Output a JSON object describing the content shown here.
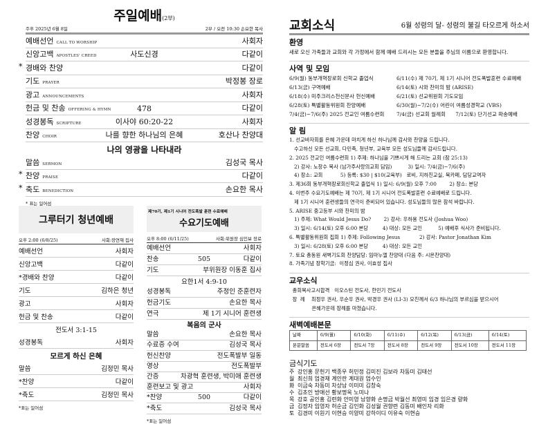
{
  "sunday": {
    "title": "주일예배",
    "part": "(2부)",
    "date": "주후 2025년 6월 8일",
    "time": "2부 / 오전 10:30  손요한 목사",
    "rows": [
      {
        "star": "",
        "ko": "예배선언",
        "en": "Call to Worship",
        "mid": "",
        "right": "사회자"
      },
      {
        "star": "",
        "ko": "신앙고백",
        "en": "Apostles' Creed",
        "mid": "사도신경",
        "right": "다같이"
      },
      {
        "star": "*",
        "ko": "경배와 찬양",
        "en": "",
        "mid": "",
        "right": "다같이"
      },
      {
        "star": "",
        "ko": "기도",
        "en": "Prayer",
        "mid": "",
        "right": "박정봉 장로"
      },
      {
        "star": "",
        "ko": "광고",
        "en": "Announcements",
        "mid": "",
        "right": "사회자"
      },
      {
        "star": "",
        "ko": "헌금 및 찬송",
        "en": "Offering & Hymn",
        "mid": "478",
        "right": "다같이"
      },
      {
        "star": "",
        "ko": "성경봉독",
        "en": "Scripture",
        "mid": "이사야 60:20-22",
        "right": "사회자"
      },
      {
        "star": "",
        "ko": "찬양",
        "en": "Choir",
        "mid": "나를 향한 하나님의 은혜",
        "right": "호산나 찬양대"
      }
    ],
    "sermon_title": "나의 영광을 나타내라",
    "rows2": [
      {
        "star": "",
        "ko": "말씀",
        "en": "Sermon",
        "mid": "",
        "right": "김성국 목사"
      },
      {
        "star": "*",
        "ko": "찬양",
        "en": "Praise",
        "mid": "",
        "right": "다같이"
      },
      {
        "star": "*",
        "ko": "축도",
        "en": "Benediction",
        "mid": "",
        "right": "손요한 목사"
      }
    ],
    "note": "* 표는 일어섬"
  },
  "youth": {
    "title": "그루터기 청년예배",
    "time": "오후 2:00 (6/8/25)",
    "host": "사회:장연재 집사",
    "rows": [
      {
        "l": "예배선언",
        "m": "",
        "r": "사회자"
      },
      {
        "l": "신앙고백",
        "m": "",
        "r": "다같이"
      },
      {
        "l": "*경배와 찬양",
        "m": "",
        "r": "다같이"
      },
      {
        "l": "기도",
        "m": "",
        "r": "김하은 청년"
      },
      {
        "l": "광고",
        "m": "",
        "r": "사회자"
      },
      {
        "l": "헌금 및 찬송",
        "m": "",
        "r": "다같이"
      }
    ],
    "scripture": "전도서 3:1-15",
    "rows2": [
      {
        "l": "성경봉독",
        "m": "",
        "r": "사회자"
      }
    ],
    "sermon_title": "모르게 하신 은혜",
    "rows3": [
      {
        "l": "말씀",
        "m": "",
        "r": "김정민 목사"
      },
      {
        "l": "*찬양",
        "m": "",
        "r": "다같이"
      },
      {
        "l": "*축도",
        "m": "",
        "r": "김정민 목사"
      }
    ],
    "note": "*표는 일어섬"
  },
  "wednesday": {
    "subtitle": "제70기, 제1기 시니어 전도폭발 훈련 수료예배",
    "title": "수요기도예배",
    "time": "오후 8:00 (6/11/25)",
    "host": "사회:위원장 심인보 장로",
    "rows": [
      {
        "l": "예배선언",
        "m": "",
        "r": "사회자"
      },
      {
        "l": "찬송",
        "m": "505",
        "r": "다같이"
      },
      {
        "l": "기도",
        "m": "",
        "r": "부위원장 이동훈 집사"
      }
    ],
    "scripture": "요한1서 4:9-10",
    "rows2": [
      {
        "l": "성경봉독",
        "m": "",
        "r": "주정인 준훈련자"
      },
      {
        "l": "헌금기도",
        "m": "",
        "r": "손요한 목사"
      },
      {
        "l": "연극",
        "m": "",
        "r": "제 1기 시니어 훈련생"
      }
    ],
    "sermon_title": "복음의 군사",
    "rows3": [
      {
        "l": "말씀",
        "m": "",
        "r": "손요한 목사"
      },
      {
        "l": "수료증 수여",
        "m": "",
        "r": "김성국 목사"
      },
      {
        "l": "헌신찬양",
        "m": "",
        "r": "전도폭발부 일동"
      },
      {
        "l": "영상",
        "m": "",
        "r": "전도폭발부"
      },
      {
        "l": "간증",
        "m": "",
        "r": "차광혁 훈련생, 박미애 훈련생"
      },
      {
        "l": "훈련보고 및 광고",
        "m": "",
        "r": "사회자"
      },
      {
        "l": "*찬양",
        "m": "500",
        "r": "다같이"
      },
      {
        "l": "*축도",
        "m": "",
        "r": "김성국 목사"
      }
    ],
    "note": "*표는 일어섬"
  },
  "news": {
    "title": "교회소식",
    "theme": "6월  성령의 달- 성령의 불길 타오르게 하소서",
    "welcome": {
      "title": "환영",
      "text": "새로 오신 가족들과 교회와 각 가정에서 함께 예배 드리시는 모든 분들을 주님의 이름으로 환영합니다."
    },
    "events": {
      "title": "사역 및 모임",
      "rows": [
        [
          "6/9(월) 동부개혁장로회 신학교 졸업식",
          "6/11(수) 제 70기, 제 1기 시니어 전도폭발훈련 수료예배"
        ],
        [
          "6/13(금) 구역예배",
          "6/14(토) 시와 찬미의 밤 (ARISE)"
        ],
        [
          "6/18(수) 미주크리스천신문사 헌신예배",
          "6/21(토) 선교위원회 기도모임"
        ],
        [
          "6/28(토) 특별활동위원회 찬양예배",
          "6/30(월)~7/2(수) 어린이 여름성경학교 (VBS)"
        ],
        [
          "7/4(금)~7/6(주) 2025 전교인 여름수련회",
          "7/4(금) 선교회 월례회      7/12(토) 단기선교 파송예배"
        ]
      ]
    },
    "notices": {
      "title": "알 림",
      "lines": [
        "1. 선교바자회를 은혜 가운데 마치게 하신 하나님께 감사와 찬양을 드립니다.",
        "   수고하신 모든 선교회, 다민족, 청년부, 교육부 모든 성도님들께 감사드립니다.",
        "2. 2025 전교인 여름수련회 1) 주제: 하나님을 기쁘시게 해 드리는 교회 (잠 25:13)",
        "   2) 강사: 노창수 목사 (남가주사랑의교회 담임)          3) 일시: 7/4(금)~7/6(주)",
        "   4) 장소: 교회           5) 등록: $30 | $10(교육부)   로비, 지하친교실, 북카페, 담당교역자",
        "3. 제36회 동부개혁장로회신학교 졸업식 1) 일시: 6/9(월) 오후 7:00        2) 장소: 본당",
        "4. 이번주 수요기도예배는 제 70기, 제 1기 시니어 전도폭발훈련 수료예배로 드립니다.",
        "   제 1기 시니어 훈련생들의 연극이 준비되어 있습니다. 성도님들의 많은 참석 바랍니다.",
        "5. ARISE 중고등부 시와 찬미의 밤",
        "   1) 주제: What Would Jesus Do?        2) 강사: 우하용 전도사 (Joshua Woo)",
        "   3) 일시: 6/14(토) 오후 6:00 본당         4) 대상: 모든 교인          5) 예배후 식사가 준비됩니다.",
        "6. 특별활동위원회 집회 1) 주제: Following Jesus            2) 강사: Pastor Jonathan Kim",
        "   3) 일시: 6/28(토) 오후 6:00 본당         4) 대상: 모든 교인",
        "7. 토요 총동원 새벽기도회 찬양담당: 임마누엘 찬양대 (다음 주: 시온찬양대)",
        "8. 가족기념 장학기금:  이정심 권사, 이효성 집사"
      ]
    },
    "members": {
      "title": "교우소식",
      "lines": [
        "  총회목사고시합격   이오스틴 전도사, 한민기 전도사",
        "  장  례    최정우 권사, 우순우 권사, 박경우 권사 (LI-3) 모친께서 6/3 하나님의 부르심을 받으시어",
        "              은혜가운데 장례를 마쳤습니다."
      ]
    },
    "dawn": {
      "title": "새벽예배본문",
      "header": [
        "날짜",
        "6/9(월)",
        "6/10(화)",
        "6/11(수)",
        "6/12(목)",
        "6/13(금)",
        "6/14(토)"
      ],
      "body": [
        "본문말씀",
        "전도서 6장",
        "전도서 7장",
        "전도서 8장",
        "전도서 9장",
        "전도서 10장",
        "전도서 11장"
      ]
    },
    "fasting": {
      "title": "금식기도",
      "rows": [
        {
          "d": "주",
          "n": "강인홍 문헌기 백종우 허민정 김미진 김보라 차동미 김태선"
        },
        {
          "d": "월",
          "n": "최신희 엄경재 계인란 계대원 엄수인"
        },
        {
          "d": "화",
          "n": "이금숙 차동미 차상남 이미미 김창숙"
        },
        {
          "d": "수",
          "n": "김초인 방애선 황보명옥 노미나"
        },
        {
          "d": "목",
          "n": "강호 공인홍 김련화 안미영 남향화 손명금 박월선 최영미 임경 임은경 량화"
        },
        {
          "d": "금",
          "n": "김정자 임영자 허순금 김인화 김성월 권향련 김동미 배인자 리화"
        },
        {
          "d": "토",
          "n": "김경미 이원기 이현승 이양미 강하이디 이유숙 이현승"
        }
      ]
    }
  }
}
